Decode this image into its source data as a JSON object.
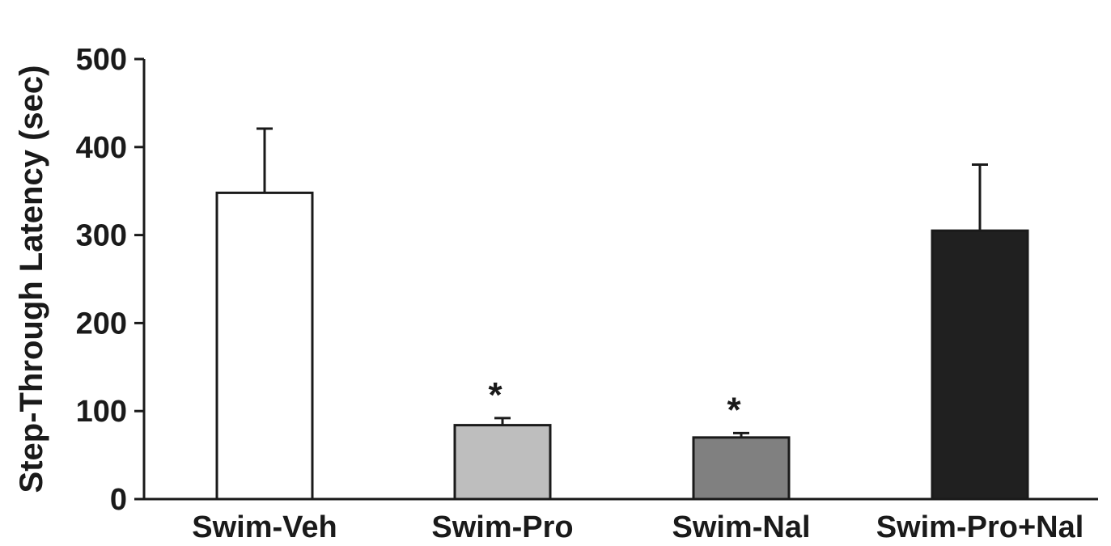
{
  "chart_data": {
    "type": "bar",
    "ylabel": "Step-Through Latency (sec)",
    "xlabel": "",
    "ylim": [
      0,
      500
    ],
    "yticks": [
      0,
      100,
      200,
      300,
      400,
      500
    ],
    "grid": false,
    "categories": [
      "Swim-Veh",
      "Swim-Pro",
      "Swim-Nal",
      "Swim-Pro+Nal"
    ],
    "values": [
      348,
      84,
      70,
      305
    ],
    "errors": [
      73,
      8,
      5,
      75
    ],
    "significance": [
      "",
      "*",
      "*",
      ""
    ],
    "colors": [
      "#ffffff",
      "#bebebe",
      "#808080",
      "#202020"
    ]
  }
}
